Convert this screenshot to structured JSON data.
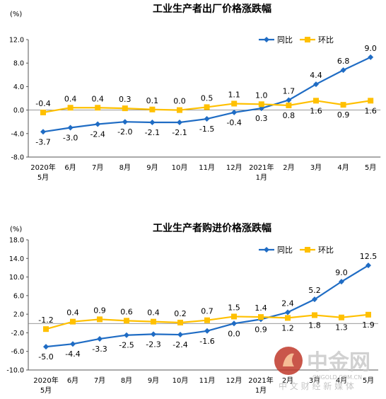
{
  "chart_data": [
    {
      "type": "line",
      "title": "工业生产者出厂价格涨跌幅",
      "unit_label": "(%)",
      "categories": [
        {
          "line1": "2020年",
          "line2": "5月"
        },
        {
          "line1": "6月",
          "line2": ""
        },
        {
          "line1": "7月",
          "line2": ""
        },
        {
          "line1": "8月",
          "line2": ""
        },
        {
          "line1": "9月",
          "line2": ""
        },
        {
          "line1": "10月",
          "line2": ""
        },
        {
          "line1": "11月",
          "line2": ""
        },
        {
          "line1": "12月",
          "line2": ""
        },
        {
          "line1": "2021年",
          "line2": "1月"
        },
        {
          "line1": "2月",
          "line2": ""
        },
        {
          "line1": "3月",
          "line2": ""
        },
        {
          "line1": "4月",
          "line2": ""
        },
        {
          "line1": "5月",
          "line2": ""
        }
      ],
      "ylim": [
        -8,
        12
      ],
      "yticks": [
        -8,
        -4,
        0,
        4,
        8,
        12
      ],
      "ytick_labels": [
        "-8.0",
        "-4.0",
        "0.0",
        "4.0",
        "8.0",
        "12.0"
      ],
      "legend_position": "top-right",
      "series": [
        {
          "name": "同比",
          "color": "#1f6cc4",
          "marker": "diamond",
          "values": [
            -3.7,
            -3.0,
            -2.4,
            -2.0,
            -2.1,
            -2.1,
            -1.5,
            -0.4,
            0.3,
            1.7,
            4.4,
            6.8,
            9.0
          ],
          "labels": [
            "-3.7",
            "-3.0",
            "-2.4",
            "-2.0",
            "-2.1",
            "-2.1",
            "-1.5",
            "-0.4",
            "0.3",
            "1.7",
            "4.4",
            "6.8",
            "9.0"
          ]
        },
        {
          "name": "环比",
          "color": "#ffc000",
          "marker": "square",
          "values": [
            -0.4,
            0.4,
            0.4,
            0.3,
            0.1,
            0.0,
            0.5,
            1.1,
            1.0,
            0.8,
            1.6,
            0.9,
            1.6
          ],
          "labels": [
            "-0.4",
            "0.4",
            "0.4",
            "0.3",
            "0.1",
            "0.0",
            "0.5",
            "1.1",
            "1.0",
            "0.8",
            "1.6",
            "0.9",
            "1.6"
          ]
        }
      ]
    },
    {
      "type": "line",
      "title": "工业生产者购进价格涨跌幅",
      "unit_label": "(%)",
      "categories": [
        {
          "line1": "2020年",
          "line2": "5月"
        },
        {
          "line1": "6月",
          "line2": ""
        },
        {
          "line1": "7月",
          "line2": ""
        },
        {
          "line1": "8月",
          "line2": ""
        },
        {
          "line1": "9月",
          "line2": ""
        },
        {
          "line1": "10月",
          "line2": ""
        },
        {
          "line1": "11月",
          "line2": ""
        },
        {
          "line1": "12月",
          "line2": ""
        },
        {
          "line1": "2021年",
          "line2": "1月"
        },
        {
          "line1": "2月",
          "line2": ""
        },
        {
          "line1": "3月",
          "line2": ""
        },
        {
          "line1": "4月",
          "line2": ""
        },
        {
          "line1": "5月",
          "line2": ""
        }
      ],
      "ylim": [
        -10,
        18
      ],
      "yticks": [
        -10,
        -6,
        -2,
        2,
        6,
        10,
        14,
        18
      ],
      "ytick_labels": [
        "-10.0",
        "-6.0",
        "-2.0",
        "2.0",
        "6.0",
        "10.0",
        "14.0",
        "18.0"
      ],
      "legend_position": "top-right",
      "series": [
        {
          "name": "同比",
          "color": "#1f6cc4",
          "marker": "diamond",
          "values": [
            -5.0,
            -4.4,
            -3.3,
            -2.5,
            -2.3,
            -2.4,
            -1.6,
            0.0,
            0.9,
            2.4,
            5.2,
            9.0,
            12.5
          ],
          "labels": [
            "-5.0",
            "-4.4",
            "-3.3",
            "-2.5",
            "-2.3",
            "-2.4",
            "-1.6",
            "0.0",
            "0.9",
            "2.4",
            "5.2",
            "9.0",
            "12.5"
          ]
        },
        {
          "name": "环比",
          "color": "#ffc000",
          "marker": "square",
          "values": [
            -1.2,
            0.4,
            0.9,
            0.6,
            0.4,
            0.2,
            0.7,
            1.5,
            1.4,
            1.2,
            1.8,
            1.3,
            1.9
          ],
          "labels": [
            "-1.2",
            "0.4",
            "0.9",
            "0.6",
            "0.4",
            "0.2",
            "0.7",
            "1.5",
            "1.4",
            "1.2",
            "1.8",
            "1.3",
            "1.9"
          ]
        }
      ]
    }
  ],
  "watermark": {
    "brand": "中金网",
    "domain": "CNGOLD.COM.CN",
    "tagline": "中 文 财 经 新 媒 体"
  }
}
